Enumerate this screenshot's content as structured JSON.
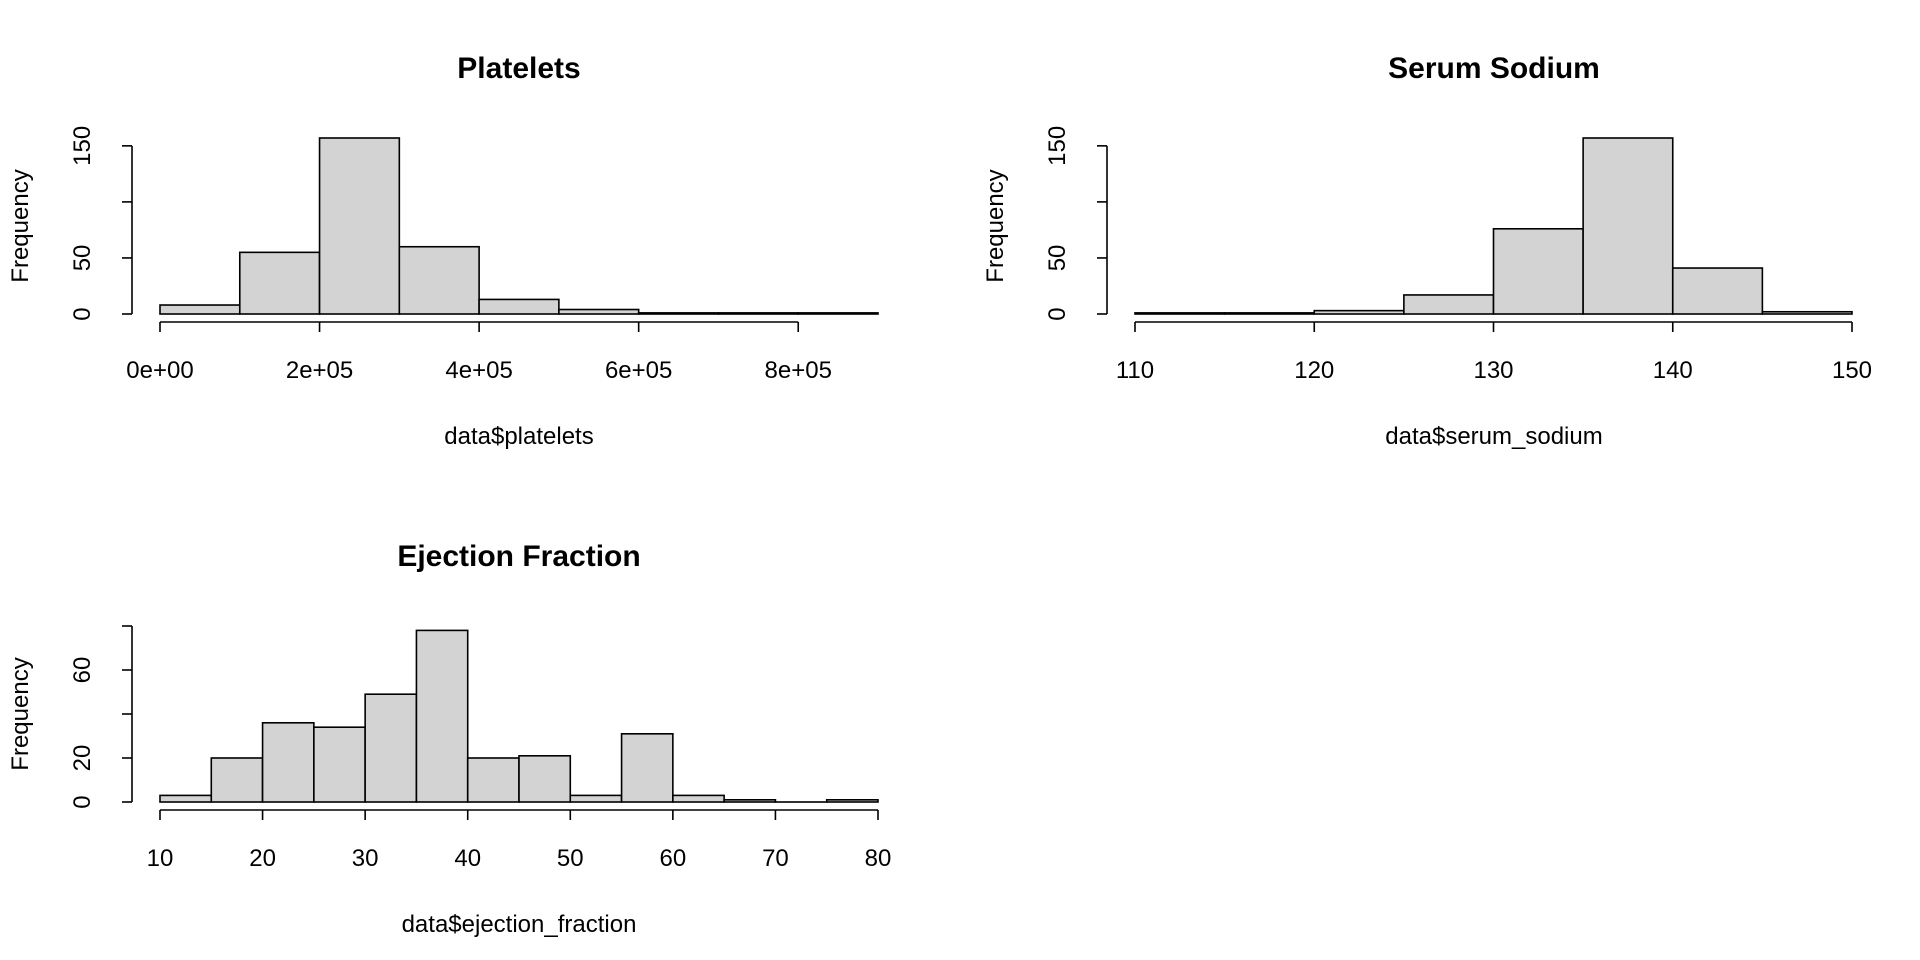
{
  "chart_data": [
    {
      "type": "bar",
      "title": "Platelets",
      "xlabel": "data$platelets",
      "ylabel": "Frequency",
      "bin_edges": [
        0,
        100000,
        200000,
        300000,
        400000,
        500000,
        600000,
        700000,
        800000,
        900000
      ],
      "values": [
        8,
        55,
        157,
        60,
        13,
        4,
        1,
        1,
        1
      ],
      "xlim": [
        0,
        900000
      ],
      "ylim": [
        0,
        157
      ],
      "x_ticks": [
        0,
        200000,
        400000,
        600000,
        800000
      ],
      "x_tick_labels": [
        "0e+00",
        "2e+05",
        "4e+05",
        "6e+05",
        "8e+05"
      ],
      "y_ticks": [
        0,
        50,
        100,
        150
      ],
      "y_tick_labels": [
        "0",
        "50",
        "",
        "150"
      ]
    },
    {
      "type": "bar",
      "title": "Serum Sodium",
      "xlabel": "data$serum_sodium",
      "ylabel": "Frequency",
      "bin_edges": [
        110,
        115,
        120,
        125,
        130,
        135,
        140,
        145,
        150
      ],
      "values": [
        1,
        1,
        3,
        17,
        76,
        157,
        41,
        2
      ],
      "xlim": [
        110,
        150
      ],
      "ylim": [
        0,
        157
      ],
      "x_ticks": [
        110,
        120,
        130,
        140,
        150
      ],
      "x_tick_labels": [
        "110",
        "120",
        "130",
        "140",
        "150"
      ],
      "y_ticks": [
        0,
        50,
        100,
        150
      ],
      "y_tick_labels": [
        "0",
        "50",
        "",
        "150"
      ]
    },
    {
      "type": "bar",
      "title": "Ejection Fraction",
      "xlabel": "data$ejection_fraction",
      "ylabel": "Frequency",
      "bin_edges": [
        10,
        15,
        20,
        25,
        30,
        35,
        40,
        45,
        50,
        55,
        60,
        65,
        70,
        75,
        80
      ],
      "values": [
        3,
        20,
        36,
        34,
        49,
        78,
        20,
        21,
        3,
        31,
        3,
        1,
        0,
        1
      ],
      "xlim": [
        10,
        80
      ],
      "ylim": [
        0,
        80
      ],
      "x_ticks": [
        10,
        20,
        30,
        40,
        50,
        60,
        70,
        80
      ],
      "x_tick_labels": [
        "10",
        "20",
        "30",
        "40",
        "50",
        "60",
        "70",
        "80"
      ],
      "y_ticks": [
        0,
        20,
        40,
        60,
        80
      ],
      "y_tick_labels": [
        "0",
        "20",
        "",
        "60",
        ""
      ]
    }
  ]
}
